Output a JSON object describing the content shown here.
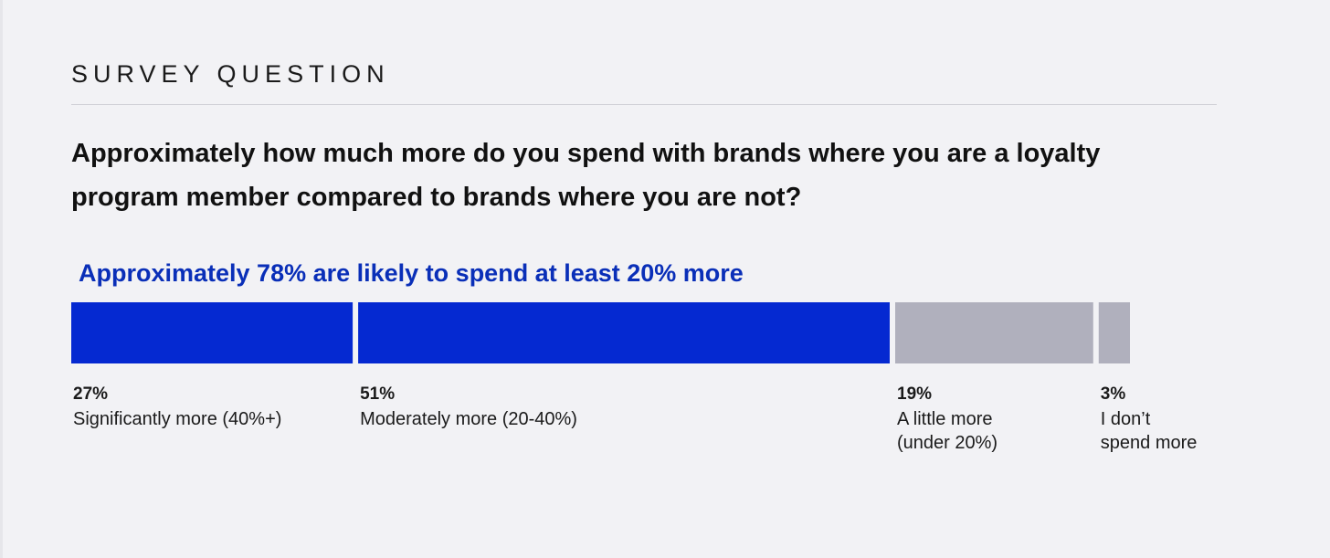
{
  "header": {
    "section_label": "SURVEY QUESTION",
    "question": "Approximately how much more do you spend with brands where you are a loyalty program member compared to brands where you are not?"
  },
  "chart_data": {
    "type": "bar",
    "orientation": "horizontal-stacked",
    "title": "Approximately 78% are likely to spend at least 20% more",
    "categories": [
      "Significantly more (40%+)",
      "Moderately more (20-40%)",
      "A little more\n(under 20%)",
      "I don’t\nspend more"
    ],
    "values": [
      27,
      51,
      19,
      3
    ],
    "value_labels": [
      "27%",
      "51%",
      "19%",
      "3%"
    ],
    "colors": [
      "#0529d1",
      "#0529d1",
      "#b0b0bd",
      "#b0b0bd"
    ],
    "xlim": [
      0,
      100
    ],
    "grid": false
  }
}
